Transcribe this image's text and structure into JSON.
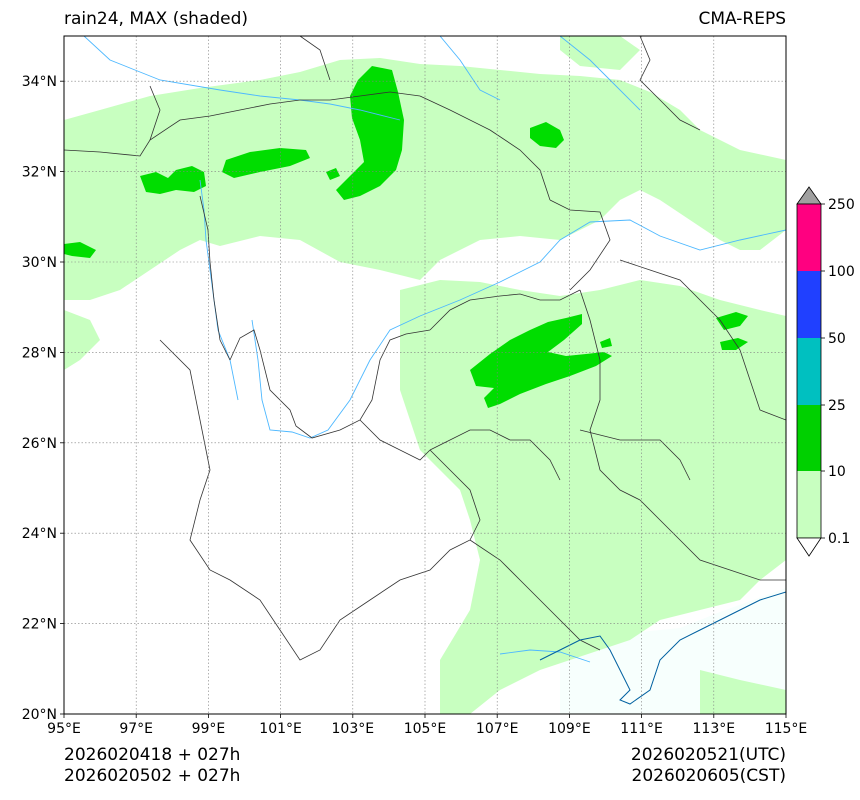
{
  "header": {
    "title_left": "rain24, MAX (shaded)",
    "title_right": "CMA-REPS"
  },
  "axes": {
    "x_ticks": [
      "95°E",
      "97°E",
      "99°E",
      "101°E",
      "103°E",
      "105°E",
      "107°E",
      "109°E",
      "111°E",
      "113°E",
      "115°E"
    ],
    "y_ticks": [
      "34°N",
      "32°N",
      "30°N",
      "28°N",
      "26°N",
      "24°N",
      "22°N",
      "20°N"
    ],
    "lon_range": [
      95,
      115
    ],
    "lat_range": [
      20,
      35
    ]
  },
  "colorbar": {
    "labels": [
      "250",
      "100",
      "50",
      "25",
      "10",
      "0.1"
    ],
    "colors": {
      "over": "#a0a0a0",
      "c100_250": "#ff0080",
      "c50_100": "#2040ff",
      "c25_50": "#00c0c0",
      "c10_25": "#00d000",
      "c01_10": "#c8ffc0",
      "under": "#ffffff"
    }
  },
  "footer": {
    "left_line1": "2026020418  +  027h",
    "left_line2": "2026020502  +  027h",
    "right_line1": "2026020521(UTC)",
    "right_line2": "2026020605(CST)"
  },
  "colors": {
    "light_green": "#c8ffc0",
    "green": "#00dd00",
    "ocean": "#fbfffe",
    "river": "#4db8ff",
    "border": "#333333",
    "coast": "#0060a0"
  }
}
